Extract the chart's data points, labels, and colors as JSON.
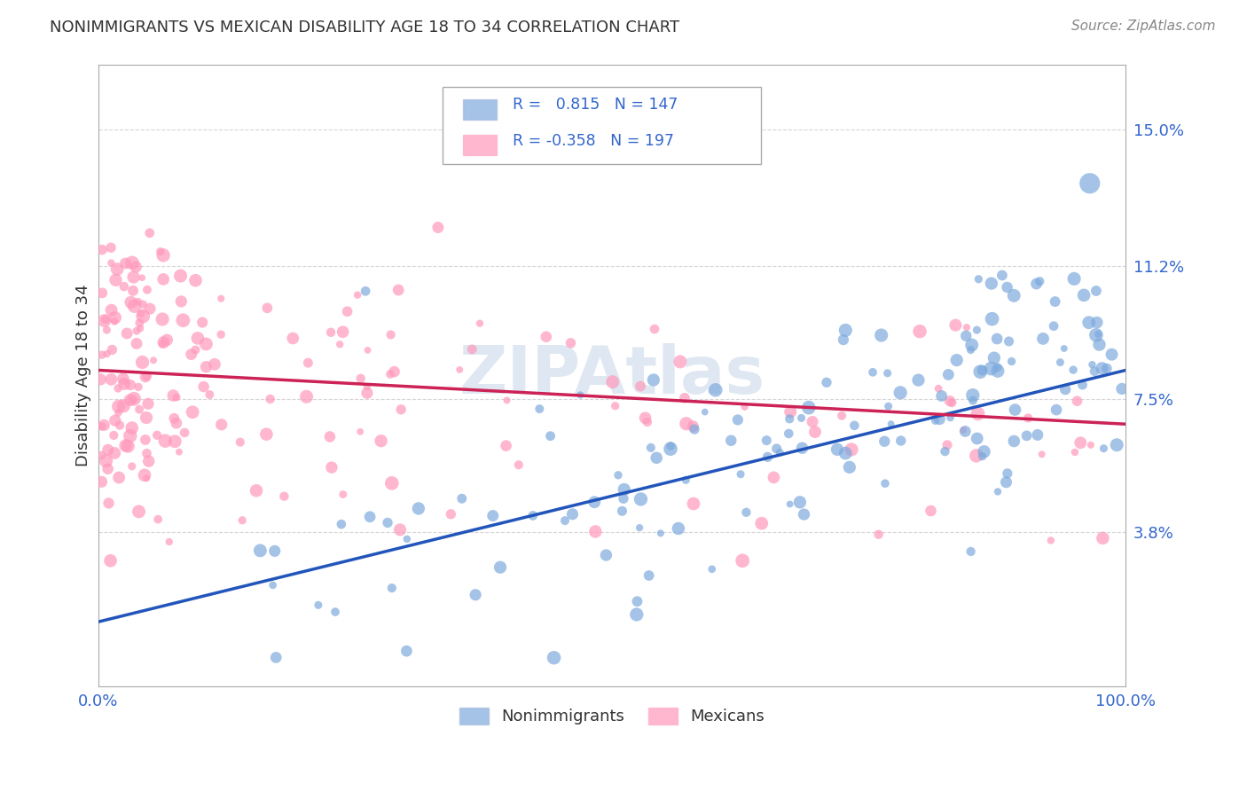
{
  "title": "NONIMMIGRANTS VS MEXICAN DISABILITY AGE 18 TO 34 CORRELATION CHART",
  "source": "Source: ZipAtlas.com",
  "ylabel": "Disability Age 18 to 34",
  "watermark": "ZIPAtlas",
  "blue_R": 0.815,
  "blue_N": 147,
  "pink_R": -0.358,
  "pink_N": 197,
  "blue_label": "Nonimmigrants",
  "pink_label": "Mexicans",
  "xlim": [
    0.0,
    1.0
  ],
  "ylim": [
    -0.005,
    0.168
  ],
  "yticks": [
    0.038,
    0.075,
    0.112,
    0.15
  ],
  "ytick_labels": [
    "3.8%",
    "7.5%",
    "11.2%",
    "15.0%"
  ],
  "xtick_labels": [
    "0.0%",
    "100.0%"
  ],
  "blue_color": "#7eaadd",
  "pink_color": "#ff99bb",
  "blue_line_color": "#2255bb",
  "pink_line_color": "#cc2255",
  "title_color": "#333333",
  "source_color": "#888888",
  "grid_color": "#cccccc",
  "axis_color": "#aaaaaa",
  "background_color": "#ffffff",
  "tick_color": "#3366cc",
  "legend_text_color": "#333333",
  "legend_value_color": "#3366cc"
}
